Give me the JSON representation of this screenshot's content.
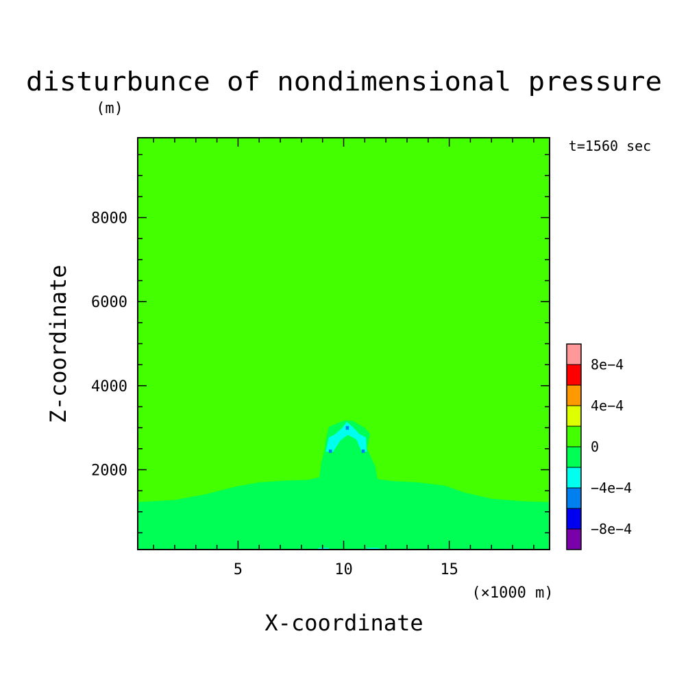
{
  "chart_data": {
    "type": "heatmap",
    "title": "disturbunce of nondimensional pressure",
    "ylabel_unit": "(m)",
    "time_label": "t=1560 sec",
    "xlabel": "X-coordinate",
    "xunit": "(×1000 m)",
    "ylabel": "Z-coordinate",
    "xlim": [
      0.25,
      19.75
    ],
    "ylim": [
      100,
      9900
    ],
    "xticks": [
      {
        "value": 5,
        "label": "5"
      },
      {
        "value": 10,
        "label": "10"
      },
      {
        "value": 15,
        "label": "15"
      }
    ],
    "yticks": [
      {
        "value": 2000,
        "label": "2000"
      },
      {
        "value": 4000,
        "label": "4000"
      },
      {
        "value": 6000,
        "label": "6000"
      },
      {
        "value": 8000,
        "label": "8000"
      }
    ],
    "colorbar": {
      "bins": [
        {
          "lower": -0.001,
          "upper": -0.0008,
          "color": "#7a00aa"
        },
        {
          "lower": -0.0008,
          "upper": -0.0006,
          "color": "#0000ee"
        },
        {
          "lower": -0.0006,
          "upper": -0.0004,
          "color": "#0080ee"
        },
        {
          "lower": -0.0004,
          "upper": -0.0002,
          "color": "#00ffee"
        },
        {
          "lower": -0.0002,
          "upper": 0,
          "color": "#00ff55"
        },
        {
          "lower": 0,
          "upper": 0.0002,
          "color": "#44ff00"
        },
        {
          "lower": 0.0002,
          "upper": 0.0004,
          "color": "#ddff00"
        },
        {
          "lower": 0.0004,
          "upper": 0.0006,
          "color": "#ff9900"
        },
        {
          "lower": 0.0006,
          "upper": 0.0008,
          "color": "#ff0000"
        },
        {
          "lower": 0.0008,
          "upper": 0.001,
          "color": "#ff9999"
        }
      ],
      "labels": [
        {
          "value": -0.0008,
          "label": "-8e-4"
        },
        {
          "value": -0.0004,
          "label": "-4e-4"
        },
        {
          "value": 0,
          "label": "0"
        },
        {
          "value": 0.0004,
          "label": "4e-4"
        },
        {
          "value": 0.0008,
          "label": "8e-4"
        }
      ]
    },
    "background_bin_color": "#44ff00",
    "regions": [
      {
        "bin_color": "#00ff55",
        "points": [
          [
            0.25,
            100
          ],
          [
            19.75,
            100
          ],
          [
            19.75,
            1230
          ],
          [
            18.5,
            1250
          ],
          [
            17.0,
            1310
          ],
          [
            15.7,
            1460
          ],
          [
            14.8,
            1620
          ],
          [
            13.5,
            1700
          ],
          [
            12.3,
            1730
          ],
          [
            11.6,
            1780
          ],
          [
            11.5,
            2080
          ],
          [
            11.1,
            2500
          ],
          [
            11.25,
            2850
          ],
          [
            11.0,
            3000
          ],
          [
            10.4,
            3170
          ],
          [
            10.0,
            3170
          ],
          [
            9.3,
            3020
          ],
          [
            9.15,
            2700
          ],
          [
            9.1,
            2480
          ],
          [
            8.95,
            2180
          ],
          [
            8.85,
            1820
          ],
          [
            8.3,
            1760
          ],
          [
            7.2,
            1740
          ],
          [
            6.0,
            1700
          ],
          [
            4.9,
            1600
          ],
          [
            3.5,
            1420
          ],
          [
            2.0,
            1280
          ],
          [
            0.25,
            1230
          ]
        ]
      },
      {
        "bin_color": "#00ffee",
        "points": [
          [
            9.15,
            2430
          ],
          [
            9.3,
            2770
          ],
          [
            9.55,
            2830
          ],
          [
            9.9,
            2980
          ],
          [
            10.15,
            3140
          ],
          [
            10.4,
            3030
          ],
          [
            10.75,
            2850
          ],
          [
            11.05,
            2770
          ],
          [
            11.1,
            2430
          ],
          [
            10.85,
            2430
          ],
          [
            10.6,
            2720
          ],
          [
            10.2,
            2830
          ],
          [
            9.85,
            2700
          ],
          [
            9.5,
            2430
          ]
        ]
      },
      {
        "bin_color": "#00ffee",
        "points": [
          [
            8.8,
            100
          ],
          [
            9.3,
            100
          ],
          [
            9.3,
            140
          ],
          [
            8.8,
            140
          ]
        ]
      },
      {
        "bin_color": "#00ffee",
        "points": [
          [
            11.1,
            100
          ],
          [
            11.7,
            100
          ],
          [
            11.7,
            140
          ],
          [
            11.1,
            140
          ]
        ]
      },
      {
        "bin_color": "#0080ee",
        "points": [
          [
            9.3,
            2400
          ],
          [
            9.45,
            2400
          ],
          [
            9.45,
            2480
          ],
          [
            9.3,
            2480
          ]
        ]
      },
      {
        "bin_color": "#0080ee",
        "points": [
          [
            10.85,
            2400
          ],
          [
            11.0,
            2400
          ],
          [
            11.0,
            2480
          ],
          [
            10.85,
            2480
          ]
        ]
      },
      {
        "bin_color": "#0080ee",
        "points": [
          [
            10.1,
            2950
          ],
          [
            10.25,
            2950
          ],
          [
            10.25,
            3040
          ],
          [
            10.1,
            3040
          ]
        ]
      }
    ]
  }
}
